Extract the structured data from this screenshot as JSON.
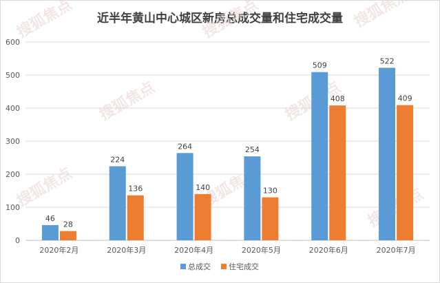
{
  "chart_data": {
    "type": "bar",
    "title": "近半年黄山中心城区新房总成交量和住宅成交量",
    "categories": [
      "2020年2月",
      "2020年3月",
      "2020年4月",
      "2020年5月",
      "2020年6月",
      "2020年7月"
    ],
    "series": [
      {
        "name": "总成交",
        "color": "#5b9bd5",
        "values": [
          46,
          224,
          264,
          254,
          509,
          522
        ]
      },
      {
        "name": "住宅成交",
        "color": "#ed7d31",
        "values": [
          28,
          136,
          140,
          130,
          408,
          409
        ]
      }
    ],
    "ylim": [
      0,
      600
    ],
    "yticks": [
      0,
      100,
      200,
      300,
      400,
      500,
      600
    ],
    "grid": true,
    "legend": "bottom"
  },
  "watermark": "搜狐焦点"
}
